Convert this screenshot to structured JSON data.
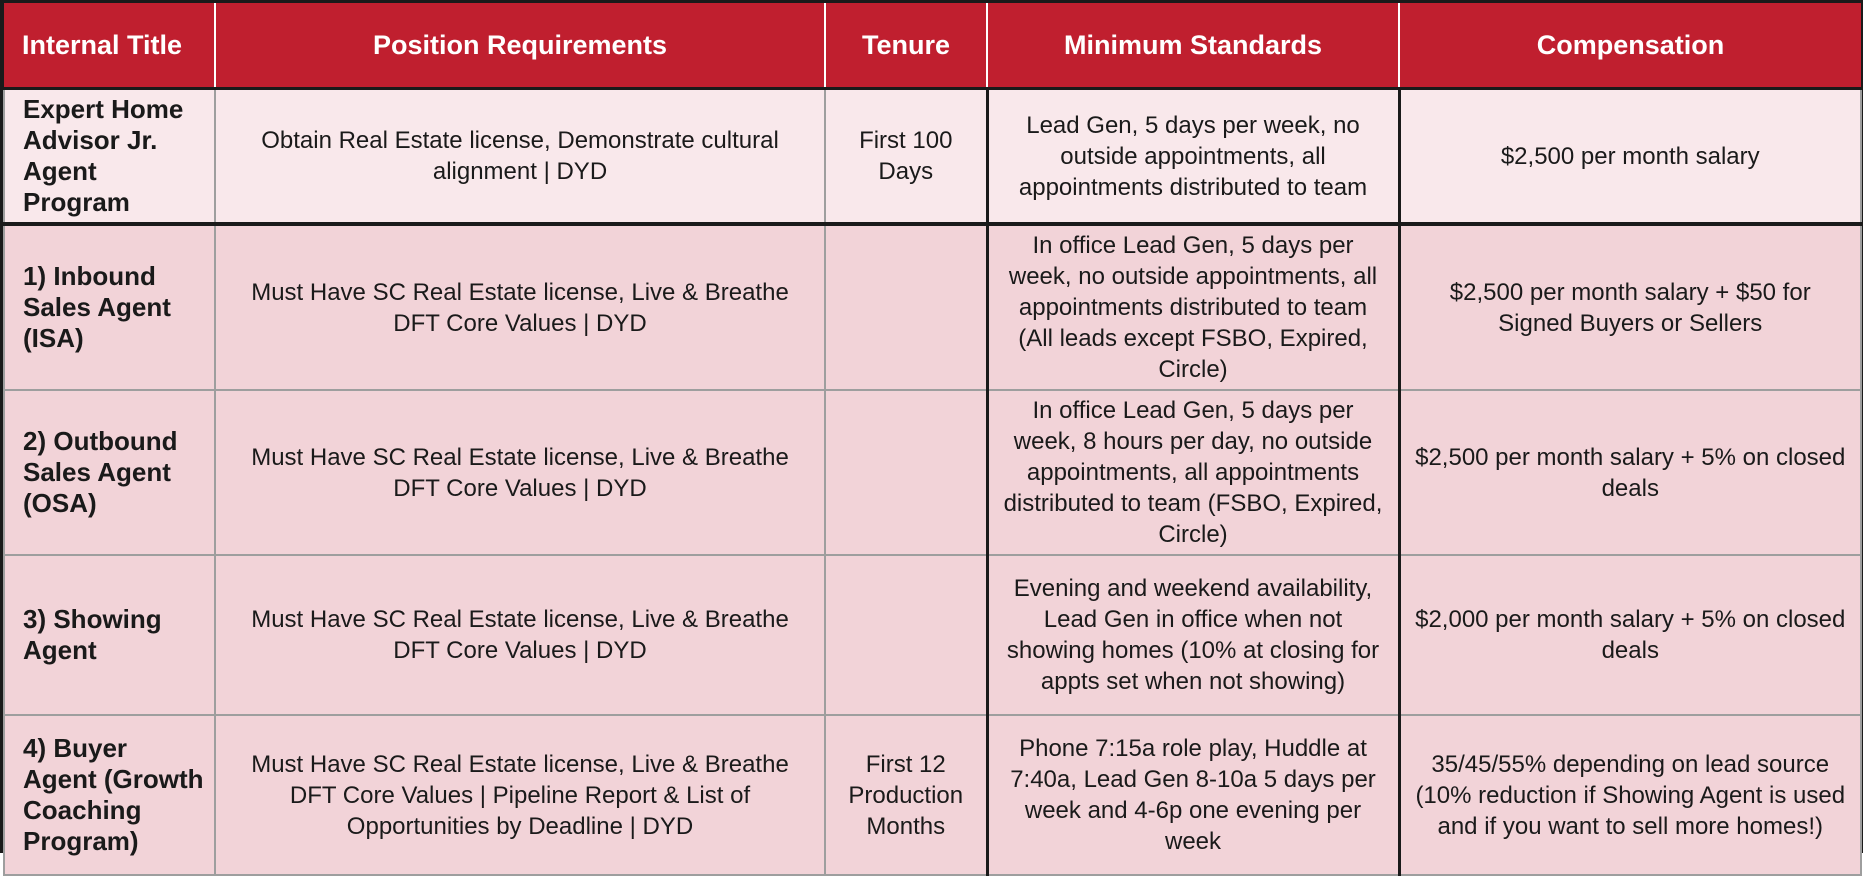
{
  "headers": [
    "Internal Title",
    "Position Requirements",
    "Tenure",
    "Minimum Standards",
    "Compensation"
  ],
  "rows": [
    {
      "title": "Expert Home Advisor Jr. Agent Program",
      "requirements": "Obtain Real Estate license, Demonstrate cultural alignment | DYD",
      "tenure": "First 100 Days",
      "standards": "Lead Gen, 5 days per week, no outside appointments, all appointments distributed to team",
      "compensation": "$2,500 per month salary"
    },
    {
      "title": "1) Inbound Sales Agent (ISA)",
      "requirements": "Must Have SC Real Estate license, Live & Breathe DFT Core Values | DYD",
      "tenure": "",
      "standards": "In office Lead Gen, 5 days per week, no outside appointments, all appointments distributed to team (All leads except FSBO, Expired, Circle)",
      "compensation": "$2,500 per month salary + $50 for Signed Buyers or Sellers"
    },
    {
      "title": "2) Outbound Sales Agent (OSA)",
      "requirements": "Must Have SC Real Estate license, Live & Breathe DFT Core Values | DYD",
      "tenure": "",
      "standards": "In office Lead Gen, 5 days per week, 8 hours per day, no outside appointments, all appointments distributed to team (FSBO, Expired, Circle)",
      "compensation": "$2,500 per month salary + 5% on closed deals"
    },
    {
      "title": "3) Showing Agent",
      "requirements": "Must Have SC Real Estate license, Live & Breathe DFT Core Values | DYD",
      "tenure": "",
      "standards": "Evening and weekend availability, Lead Gen in office when not showing homes (10% at closing for appts set when not showing)",
      "compensation": "$2,000 per month salary + 5% on closed deals"
    },
    {
      "title": "4) Buyer Agent (Growth Coaching Program)",
      "requirements": "Must Have SC Real Estate license, Live & Breathe DFT Core Values | Pipeline Report & List of Opportunities by Deadline | DYD",
      "tenure": "First 12 Production Months",
      "standards": "Phone 7:15a role play, Huddle at 7:40a, Lead Gen 8-10a 5 days per week and 4-6p one evening per week",
      "compensation": "35/45/55% depending on lead source (10% reduction if Showing Agent is used and if you want to sell more homes!)"
    }
  ]
}
